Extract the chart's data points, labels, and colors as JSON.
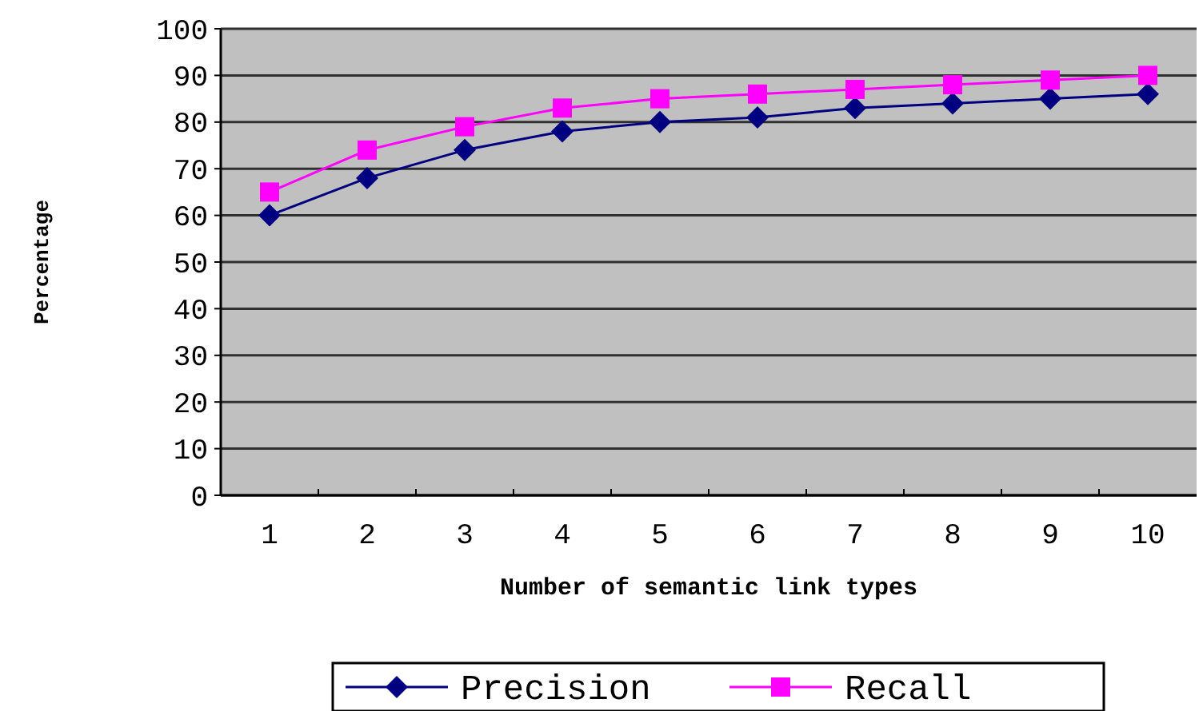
{
  "chart_data": {
    "type": "line",
    "xlabel": "Number of semantic link types",
    "ylabel": "Percentage",
    "categories": [
      "1",
      "2",
      "3",
      "4",
      "5",
      "6",
      "7",
      "8",
      "9",
      "10"
    ],
    "series": [
      {
        "name": "Precision",
        "color": "#000080",
        "marker": "diamond",
        "values": [
          60,
          68,
          74,
          78,
          80,
          81,
          83,
          84,
          85,
          86
        ]
      },
      {
        "name": "Recall",
        "color": "#ff00ff",
        "marker": "square",
        "values": [
          65,
          74,
          79,
          83,
          85,
          86,
          87,
          88,
          89,
          90
        ]
      }
    ],
    "ylim": [
      0,
      100
    ],
    "yticks": [
      0,
      10,
      20,
      30,
      40,
      50,
      60,
      70,
      80,
      90,
      100
    ],
    "grid": "y",
    "legend": "bottom"
  }
}
